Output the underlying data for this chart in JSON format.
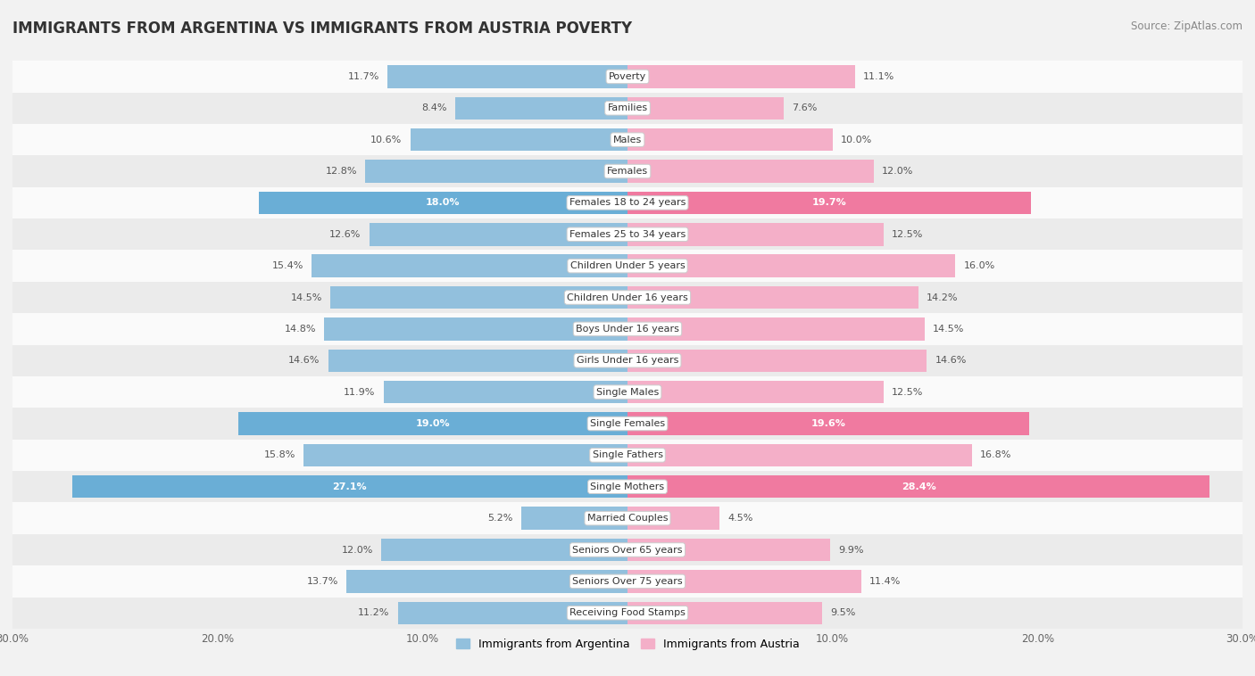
{
  "title": "IMMIGRANTS FROM ARGENTINA VS IMMIGRANTS FROM AUSTRIA POVERTY",
  "source": "Source: ZipAtlas.com",
  "categories": [
    "Poverty",
    "Families",
    "Males",
    "Females",
    "Females 18 to 24 years",
    "Females 25 to 34 years",
    "Children Under 5 years",
    "Children Under 16 years",
    "Boys Under 16 years",
    "Girls Under 16 years",
    "Single Males",
    "Single Females",
    "Single Fathers",
    "Single Mothers",
    "Married Couples",
    "Seniors Over 65 years",
    "Seniors Over 75 years",
    "Receiving Food Stamps"
  ],
  "argentina_values": [
    11.7,
    8.4,
    10.6,
    12.8,
    18.0,
    12.6,
    15.4,
    14.5,
    14.8,
    14.6,
    11.9,
    19.0,
    15.8,
    27.1,
    5.2,
    12.0,
    13.7,
    11.2
  ],
  "austria_values": [
    11.1,
    7.6,
    10.0,
    12.0,
    19.7,
    12.5,
    16.0,
    14.2,
    14.5,
    14.6,
    12.5,
    19.6,
    16.8,
    28.4,
    4.5,
    9.9,
    11.4,
    9.5
  ],
  "argentina_color": "#92c0dd",
  "austria_color": "#f4afc8",
  "argentina_highlight_color": "#6aaed6",
  "austria_highlight_color": "#f07aa0",
  "background_color": "#f2f2f2",
  "row_color_even": "#fafafa",
  "row_color_odd": "#ebebeb",
  "max_value": 30.0,
  "label_color_normal": "#555555",
  "label_color_highlight": "#ffffff",
  "title_fontsize": 12,
  "source_fontsize": 8.5,
  "bar_label_fontsize": 8,
  "category_fontsize": 8,
  "axis_label_fontsize": 8.5,
  "highlight_rows": [
    4,
    11,
    13
  ],
  "bar_height": 0.72
}
